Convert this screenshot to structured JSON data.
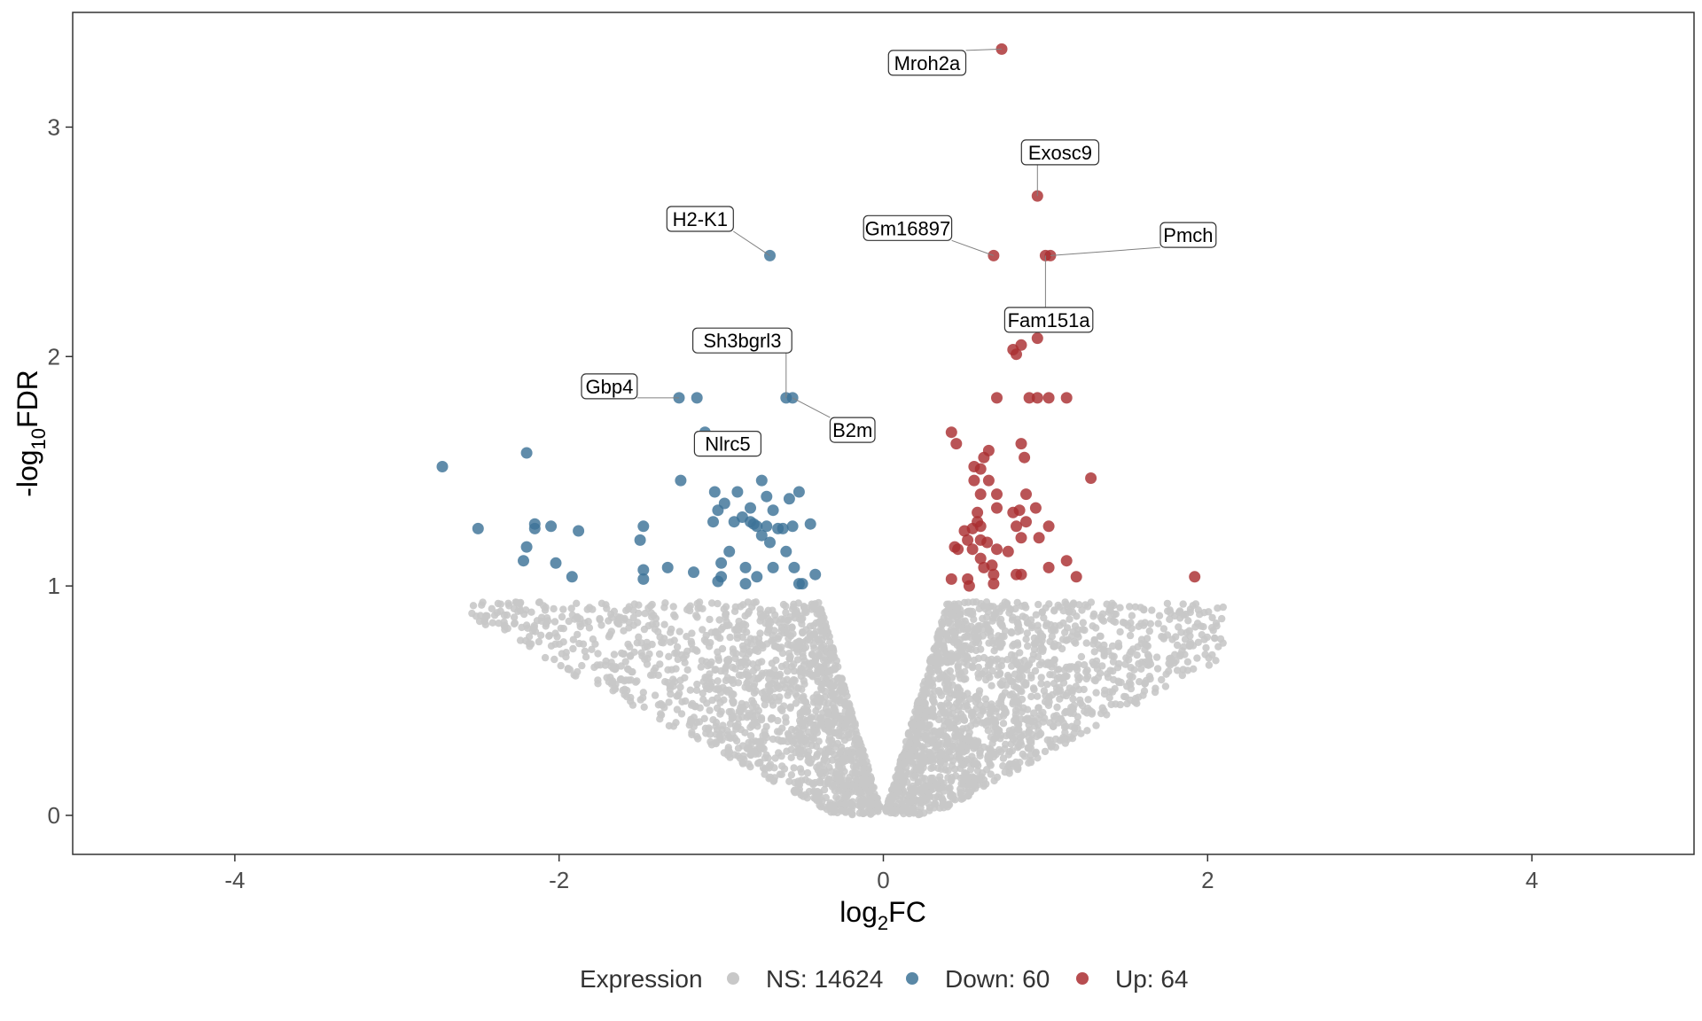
{
  "chart_data": {
    "type": "scatter",
    "title": "",
    "xlabel_main": "log",
    "xlabel_sub": "2",
    "xlabel_tail": "FC",
    "ylabel_pre": "-log",
    "ylabel_sub": "10",
    "ylabel_tail": "FDR",
    "xlim": [
      -5,
      5
    ],
    "ylim": [
      -0.17,
      3.5
    ],
    "x_ticks": [
      -4,
      -2,
      0,
      2,
      4
    ],
    "x_tick_labels": [
      "-4",
      "-2",
      "0",
      "2",
      "4"
    ],
    "y_ticks": [
      0,
      1,
      2,
      3
    ],
    "y_tick_labels": [
      "0",
      "1",
      "2",
      "3"
    ],
    "grid": false,
    "legend": {
      "title": "Expression",
      "position": "bottom",
      "entries": [
        {
          "label": "NS: 14624",
          "color": "#c8c8c8"
        },
        {
          "label": "Down: 60",
          "color": "#3d7397"
        },
        {
          "label": "Up: 64",
          "color": "#aa2e31"
        }
      ]
    },
    "colors": {
      "NS": "#c8c8c8",
      "Down": "#3d7397",
      "Up": "#aa2e31"
    },
    "series": [
      {
        "name": "Down: 60",
        "points": [
          [
            -2.72,
            1.52
          ],
          [
            -2.5,
            1.25
          ],
          [
            -2.2,
            1.58
          ],
          [
            -2.15,
            1.27
          ],
          [
            -2.15,
            1.25
          ],
          [
            -2.05,
            1.26
          ],
          [
            -2.2,
            1.17
          ],
          [
            -2.22,
            1.11
          ],
          [
            -2.02,
            1.1
          ],
          [
            -1.92,
            1.04
          ],
          [
            -1.88,
            1.24
          ],
          [
            -1.5,
            1.2
          ],
          [
            -1.48,
            1.26
          ],
          [
            -1.48,
            1.07
          ],
          [
            -1.48,
            1.03
          ],
          [
            -1.33,
            1.08
          ],
          [
            -1.26,
            1.82
          ],
          [
            -1.15,
            1.82
          ],
          [
            -1.25,
            1.46
          ],
          [
            -1.17,
            1.06
          ],
          [
            -1.1,
            1.67
          ],
          [
            -1.04,
            1.41
          ],
          [
            -1.05,
            1.28
          ],
          [
            -0.98,
            1.36
          ],
          [
            -0.92,
            1.28
          ],
          [
            -0.9,
            1.41
          ],
          [
            -0.87,
            1.3
          ],
          [
            -0.82,
            1.28
          ],
          [
            -0.8,
            1.27
          ],
          [
            -0.82,
            1.34
          ],
          [
            -0.78,
            1.26
          ],
          [
            -0.75,
            1.46
          ],
          [
            -0.72,
            1.39
          ],
          [
            -0.75,
            1.22
          ],
          [
            -0.7,
            1.19
          ],
          [
            -0.68,
            1.33
          ],
          [
            -0.65,
            1.25
          ],
          [
            -0.62,
            1.25
          ],
          [
            -0.58,
            1.38
          ],
          [
            -0.56,
            1.26
          ],
          [
            -0.52,
            1.41
          ],
          [
            -0.45,
            1.27
          ],
          [
            -0.42,
            1.05
          ],
          [
            -0.55,
            1.08
          ],
          [
            -0.5,
            1.01
          ],
          [
            -0.52,
            1.01
          ],
          [
            -0.6,
            1.15
          ],
          [
            -0.68,
            1.08
          ],
          [
            -0.95,
            1.15
          ],
          [
            -1.0,
            1.1
          ],
          [
            -1.0,
            1.04
          ],
          [
            -0.85,
            1.08
          ],
          [
            -0.85,
            1.01
          ],
          [
            -1.02,
            1.02
          ],
          [
            -0.78,
            1.04
          ],
          [
            -1.02,
            1.33
          ],
          [
            -0.72,
            1.26
          ],
          [
            -0.6,
            1.82
          ],
          [
            -0.56,
            1.82
          ],
          [
            -0.7,
            2.44
          ]
        ]
      },
      {
        "name": "Up: 64",
        "points": [
          [
            0.73,
            3.34
          ],
          [
            0.95,
            2.7
          ],
          [
            0.68,
            2.44
          ],
          [
            1.0,
            2.44
          ],
          [
            1.03,
            2.44
          ],
          [
            0.95,
            2.08
          ],
          [
            0.85,
            2.05
          ],
          [
            0.8,
            2.03
          ],
          [
            0.82,
            2.01
          ],
          [
            0.7,
            1.82
          ],
          [
            0.9,
            1.82
          ],
          [
            0.95,
            1.82
          ],
          [
            1.02,
            1.82
          ],
          [
            1.13,
            1.82
          ],
          [
            0.42,
            1.67
          ],
          [
            0.45,
            1.62
          ],
          [
            0.62,
            1.56
          ],
          [
            0.65,
            1.59
          ],
          [
            0.85,
            1.62
          ],
          [
            0.87,
            1.56
          ],
          [
            0.56,
            1.52
          ],
          [
            0.6,
            1.51
          ],
          [
            0.65,
            1.46
          ],
          [
            0.56,
            1.46
          ],
          [
            0.6,
            1.4
          ],
          [
            0.7,
            1.4
          ],
          [
            0.88,
            1.4
          ],
          [
            1.28,
            1.47
          ],
          [
            0.7,
            1.34
          ],
          [
            0.58,
            1.32
          ],
          [
            0.8,
            1.32
          ],
          [
            0.84,
            1.33
          ],
          [
            0.94,
            1.34
          ],
          [
            1.02,
            1.26
          ],
          [
            0.58,
            1.28
          ],
          [
            0.6,
            1.26
          ],
          [
            0.88,
            1.28
          ],
          [
            0.82,
            1.26
          ],
          [
            0.5,
            1.24
          ],
          [
            0.55,
            1.25
          ],
          [
            0.52,
            1.2
          ],
          [
            0.6,
            1.2
          ],
          [
            0.64,
            1.19
          ],
          [
            0.85,
            1.21
          ],
          [
            0.96,
            1.21
          ],
          [
            0.44,
            1.17
          ],
          [
            0.46,
            1.16
          ],
          [
            0.55,
            1.16
          ],
          [
            0.7,
            1.16
          ],
          [
            0.77,
            1.15
          ],
          [
            0.6,
            1.12
          ],
          [
            0.67,
            1.09
          ],
          [
            1.13,
            1.11
          ],
          [
            1.02,
            1.08
          ],
          [
            0.82,
            1.05
          ],
          [
            0.85,
            1.05
          ],
          [
            1.19,
            1.04
          ],
          [
            1.92,
            1.04
          ],
          [
            0.42,
            1.03
          ],
          [
            0.52,
            1.03
          ],
          [
            0.53,
            1.0
          ],
          [
            0.68,
            1.05
          ],
          [
            0.68,
            1.01
          ],
          [
            0.62,
            1.08
          ]
        ]
      }
    ],
    "ns_envelope": {
      "name": "NS: 14624",
      "left_x_range": [
        -2.6,
        -0.02
      ],
      "right_x_range": [
        0.02,
        2.1
      ],
      "y_range": [
        0,
        0.95
      ]
    },
    "annotations": [
      {
        "label": "Mroh2a",
        "point": [
          0.73,
          3.34
        ],
        "at": [
          0.27,
          3.28
        ]
      },
      {
        "label": "Exosc9",
        "point": [
          0.95,
          2.7
        ],
        "at": [
          1.09,
          2.89
        ]
      },
      {
        "label": "H2-K1",
        "point": [
          -0.7,
          2.44
        ],
        "at": [
          -1.13,
          2.6
        ]
      },
      {
        "label": "Gm16897",
        "point": [
          0.68,
          2.44
        ],
        "at": [
          0.15,
          2.56
        ]
      },
      {
        "label": "Pmch",
        "point": [
          1.03,
          2.44
        ],
        "at": [
          1.88,
          2.53
        ]
      },
      {
        "label": "Fam151a",
        "point": [
          1.0,
          2.44
        ],
        "at": [
          1.02,
          2.16
        ]
      },
      {
        "label": "Sh3bgrl3",
        "point": [
          -0.6,
          1.82
        ],
        "at": [
          -0.87,
          2.07
        ]
      },
      {
        "label": "Gbp4",
        "point": [
          -1.26,
          1.82
        ],
        "at": [
          -1.69,
          1.87
        ]
      },
      {
        "label": "B2m",
        "point": [
          -0.56,
          1.82
        ],
        "at": [
          -0.19,
          1.68
        ]
      },
      {
        "label": "Nlrc5",
        "point": [
          -1.1,
          1.67
        ],
        "at": [
          -0.96,
          1.62
        ]
      }
    ]
  }
}
